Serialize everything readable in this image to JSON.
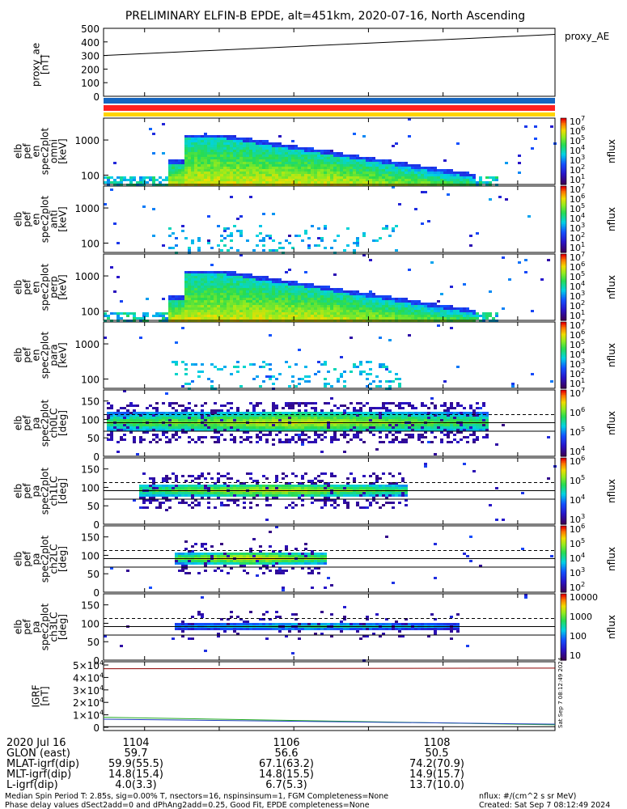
{
  "title": "PRELIMINARY ELFIN-B EPDE, alt=451km, 2020-07-16, North Ascending",
  "colors": {
    "bar_blue": "#1565c0",
    "bar_red": "#ff2020",
    "bar_yellow": "#ffd400",
    "ae_line": "#000000",
    "igrf_red": "#8b0000",
    "igrf_green": "#22aa22",
    "igrf_blue": "#1f3fbf",
    "igrf_black": "#000000"
  },
  "chart_data": [
    {
      "type": "line",
      "panel": "proxy_ae",
      "ylabel": "proxy_ae\n[nT]",
      "ylim": [
        0,
        500
      ],
      "yticks": [
        "500",
        "400",
        "300",
        "200",
        "100",
        "0"
      ],
      "legend": "proxy_AE",
      "x": [
        1103.45,
        1109.5
      ],
      "series": [
        {
          "name": "proxy_AE",
          "values": [
            300,
            455
          ]
        }
      ]
    },
    {
      "type": "heatmap",
      "panel": "status_bars",
      "rows": [
        "blue",
        "red",
        "yellow"
      ]
    },
    {
      "type": "heatmap",
      "panel": "pef_en_spec2plot_omni",
      "ylabel": [
        "elb",
        "pef",
        "en",
        "spec2plot",
        "omni",
        "[keV]"
      ],
      "yticks": [
        "1000",
        "100"
      ],
      "colorbar": {
        "label": "nflux",
        "ticks": [
          "10^7",
          "10^6",
          "10^5",
          "10^4",
          "10^3",
          "10^2",
          "10^1"
        ]
      }
    },
    {
      "type": "heatmap",
      "panel": "pef_en_spec2plot_anti",
      "ylabel": [
        "elb",
        "pef",
        "en",
        "spec2plot",
        "anti",
        "[keV]"
      ],
      "yticks": [
        "1000",
        "100"
      ],
      "colorbar": {
        "label": "nflux",
        "ticks": [
          "10^7",
          "10^6",
          "10^5",
          "10^4",
          "10^3",
          "10^2",
          "10^1"
        ]
      }
    },
    {
      "type": "heatmap",
      "panel": "pef_en_spec2plot_perp",
      "ylabel": [
        "elb",
        "pef",
        "en",
        "spec2plot",
        "perp",
        "[keV]"
      ],
      "yticks": [
        "1000",
        "100"
      ],
      "colorbar": {
        "label": "nflux",
        "ticks": [
          "10^7",
          "10^6",
          "10^5",
          "10^4",
          "10^3",
          "10^2",
          "10^1"
        ]
      }
    },
    {
      "type": "heatmap",
      "panel": "pef_en_spec2plot_para",
      "ylabel": [
        "elb",
        "pef",
        "en",
        "spec2plot",
        "para",
        "[keV]"
      ],
      "yticks": [
        "1000",
        "100"
      ],
      "colorbar": {
        "label": "nflux",
        "ticks": [
          "10^7",
          "10^6",
          "10^5",
          "10^4",
          "10^3",
          "10^2",
          "10^1"
        ]
      }
    },
    {
      "type": "heatmap",
      "panel": "pef_pa_spec2plot_ch0LC",
      "ylabel": [
        "elb",
        "pef",
        "pa",
        "spec2plot",
        "ch0LC",
        "[deg]"
      ],
      "yticks": [
        "150",
        "100",
        "50",
        "0"
      ],
      "colorbar": {
        "label": "nflux",
        "ticks": [
          "10^7",
          "10^6",
          "10^5",
          "10^4"
        ]
      }
    },
    {
      "type": "heatmap",
      "panel": "pef_pa_spec2plot_ch1LC",
      "ylabel": [
        "elb",
        "pef",
        "pa",
        "spec2plot",
        "ch1LC",
        "[deg]"
      ],
      "yticks": [
        "150",
        "100",
        "50",
        "0"
      ],
      "colorbar": {
        "label": "nflux",
        "ticks": [
          "10^6",
          "10^5",
          "10^4",
          "10^3"
        ]
      }
    },
    {
      "type": "heatmap",
      "panel": "pef_pa_spec2plot_ch2LC",
      "ylabel": [
        "elb",
        "pef",
        "pa",
        "spec2plot",
        "ch2LC",
        "[deg]"
      ],
      "yticks": [
        "150",
        "100",
        "50",
        "0"
      ],
      "colorbar": {
        "label": "nflux",
        "ticks": [
          "10^6",
          "10^5",
          "10^4",
          "10^3",
          "10^2"
        ]
      }
    },
    {
      "type": "heatmap",
      "panel": "pef_pa_spec2plot_ch3LC",
      "ylabel": [
        "elb",
        "pef",
        "pa",
        "spec2plot",
        "ch3LC",
        "[deg]"
      ],
      "yticks": [
        "150",
        "100",
        "50",
        "0"
      ],
      "colorbar": {
        "label": "nflux",
        "ticks": [
          "10000",
          "1000",
          "100",
          "10"
        ]
      }
    },
    {
      "type": "line",
      "panel": "igrf",
      "ylabel": "IGRF\n[nT]",
      "ylim": [
        0,
        50000
      ],
      "yticks": [
        "5×10^4",
        "4×10^4",
        "3×10^4",
        "2×10^4",
        "1×10^4",
        "0"
      ],
      "x": [
        1103.45,
        1109.5
      ],
      "series": [
        {
          "name": "",
          "values": [
            47000,
            47500
          ]
        },
        {
          "name": "",
          "values": [
            8000,
            2000
          ]
        },
        {
          "name": "",
          "values": [
            6500,
            2500
          ]
        },
        {
          "name": "",
          "values": [
            500,
            500
          ]
        }
      ]
    }
  ],
  "timestamp_side": "Sat Sep  7 08:12:49 2024",
  "axis_rows": {
    "date": "2020 Jul 16",
    "labels": [
      "GLON (east)",
      "MLAT-igrf(dip)",
      "MLT-igrf(dip)",
      "L-igrf(dip)"
    ],
    "times": [
      "1104",
      "1106",
      "1108"
    ],
    "col1": [
      "59.7",
      "59.9(55.5)",
      "14.8(15.4)",
      "4.0(3.3)"
    ],
    "col2": [
      "56.6",
      "67.1(63.2)",
      "14.8(15.5)",
      "6.7(5.3)"
    ],
    "col3": [
      "50.5",
      "74.2(70.9)",
      "14.9(15.7)",
      "13.7(10.0)"
    ]
  },
  "footer": {
    "line1": "Median Spin Period T: 2.85s, sig=0.00% T, nsectors=16, nspinsinsum=1, FGM Completeness=None",
    "line2": "Phase delay values dSect2add=0 and dPhAng2add=0.25, Good Fit, EPDE completeness=None",
    "nflux_units": "nflux: #/(cm^2 s sr MeV)",
    "created": "Created: Sat Sep  7 08:12:49 2024"
  }
}
